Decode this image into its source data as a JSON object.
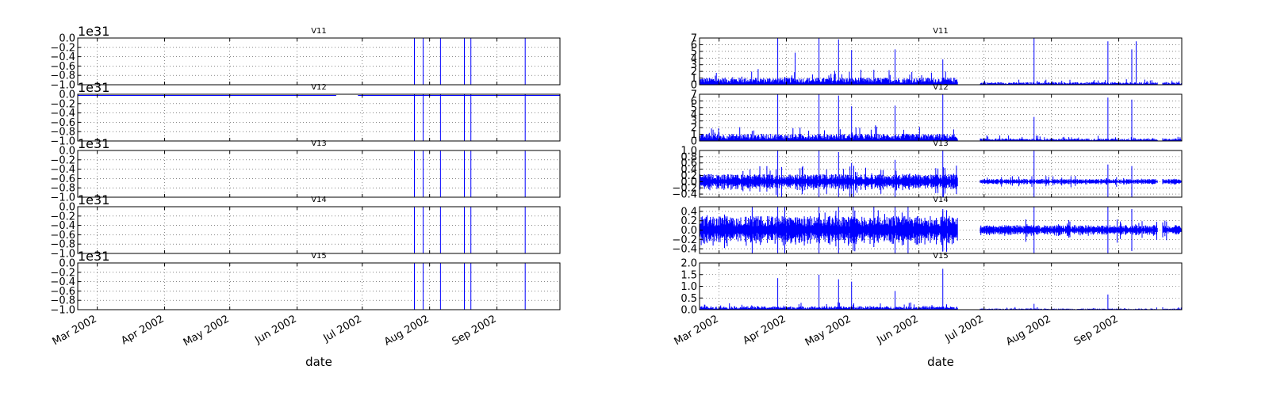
{
  "chart_data": [
    {
      "type": "line",
      "name": "left-figure",
      "xlabel": "date",
      "x_ticks": [
        "Mar 2002",
        "Apr 2002",
        "May 2002",
        "Jun 2002",
        "Jul 2002",
        "Aug 2002",
        "Sep 2002"
      ],
      "xlim": [
        "2002-02-20",
        "2002-09-30"
      ],
      "panels": [
        {
          "title": "V11",
          "offset_text": "1e31",
          "ylim": [
            -1.0,
            0.0
          ],
          "y_ticks": [
            "0.0",
            "−0.2",
            "−0.4",
            "−0.6",
            "−0.8",
            "−1.0"
          ],
          "baseline_segments": [],
          "spikes": [
            {
              "date": "2002-07-25",
              "value": -1.0
            },
            {
              "date": "2002-07-29",
              "value": -1.0
            },
            {
              "date": "2002-08-06",
              "value": -1.0
            },
            {
              "date": "2002-08-17",
              "value": -1.0
            },
            {
              "date": "2002-08-20",
              "value": -1.0
            },
            {
              "date": "2002-09-14",
              "value": -1.0
            }
          ]
        },
        {
          "title": "V12",
          "offset_text": "1e31",
          "ylim": [
            -1.0,
            0.0
          ],
          "y_ticks": [
            "0.0",
            "−0.2",
            "−0.4",
            "−0.6",
            "−0.8",
            "−1.0"
          ],
          "baseline_segments": [
            [
              "2002-02-20",
              "2002-06-19"
            ],
            [
              "2002-06-29",
              "2002-09-30"
            ]
          ],
          "spikes": [
            {
              "date": "2002-07-25",
              "value": -1.0
            },
            {
              "date": "2002-07-29",
              "value": -1.0
            },
            {
              "date": "2002-08-06",
              "value": -1.0
            },
            {
              "date": "2002-08-17",
              "value": -1.0
            },
            {
              "date": "2002-08-20",
              "value": -1.0
            },
            {
              "date": "2002-09-14",
              "value": -1.0
            }
          ]
        },
        {
          "title": "V13",
          "offset_text": "1e31",
          "ylim": [
            -1.0,
            0.0
          ],
          "y_ticks": [
            "0.0",
            "−0.2",
            "−0.4",
            "−0.6",
            "−0.8",
            "−1.0"
          ],
          "baseline_segments": [],
          "spikes": [
            {
              "date": "2002-07-25",
              "value": -1.0
            },
            {
              "date": "2002-07-29",
              "value": -1.0
            },
            {
              "date": "2002-08-06",
              "value": -1.0
            },
            {
              "date": "2002-08-17",
              "value": -1.0
            },
            {
              "date": "2002-08-20",
              "value": -1.0
            },
            {
              "date": "2002-09-14",
              "value": -1.0
            }
          ]
        },
        {
          "title": "V14",
          "offset_text": "1e31",
          "ylim": [
            -1.0,
            0.0
          ],
          "y_ticks": [
            "0.0",
            "−0.2",
            "−0.4",
            "−0.6",
            "−0.8",
            "−1.0"
          ],
          "baseline_segments": [],
          "spikes": [
            {
              "date": "2002-07-25",
              "value": -1.0
            },
            {
              "date": "2002-07-29",
              "value": -1.0
            },
            {
              "date": "2002-08-06",
              "value": -1.0
            },
            {
              "date": "2002-08-17",
              "value": -1.0
            },
            {
              "date": "2002-08-20",
              "value": -1.0
            },
            {
              "date": "2002-09-14",
              "value": -1.0
            }
          ]
        },
        {
          "title": "V15",
          "offset_text": "1e31",
          "ylim": [
            -1.0,
            0.0
          ],
          "y_ticks": [
            "0.0",
            "−0.2",
            "−0.4",
            "−0.6",
            "−0.8",
            "−1.0"
          ],
          "baseline_segments": [],
          "spikes": [
            {
              "date": "2002-07-25",
              "value": -1.0
            },
            {
              "date": "2002-07-29",
              "value": -1.0
            },
            {
              "date": "2002-08-06",
              "value": -1.0
            },
            {
              "date": "2002-08-17",
              "value": -1.0
            },
            {
              "date": "2002-08-20",
              "value": -1.0
            },
            {
              "date": "2002-09-14",
              "value": -1.0
            }
          ]
        }
      ]
    },
    {
      "type": "line",
      "name": "right-figure",
      "xlabel": "date",
      "x_ticks": [
        "Mar 2002",
        "Apr 2002",
        "May 2002",
        "Jun 2002",
        "Jul 2002",
        "Aug 2002",
        "Sep 2002"
      ],
      "xlim": [
        "2002-02-20",
        "2002-09-30"
      ],
      "panels": [
        {
          "title": "V11",
          "ylim": [
            0,
            7
          ],
          "y_ticks": [
            "7",
            "6",
            "5",
            "4",
            "3",
            "2",
            "1",
            "0"
          ],
          "kind": "positive",
          "typical": 0.9,
          "gaps": [
            [
              "2002-06-19",
              "2002-06-29"
            ],
            [
              "2002-09-19",
              "2002-09-21"
            ]
          ],
          "peaks": [
            {
              "date": "2002-03-28",
              "value": 7.0
            },
            {
              "date": "2002-04-05",
              "value": 4.8
            },
            {
              "date": "2002-04-16",
              "value": 7.0
            },
            {
              "date": "2002-04-25",
              "value": 6.8
            },
            {
              "date": "2002-05-01",
              "value": 5.2
            },
            {
              "date": "2002-05-21",
              "value": 5.3
            },
            {
              "date": "2002-06-12",
              "value": 3.8
            },
            {
              "date": "2002-07-24",
              "value": 7.0
            },
            {
              "date": "2002-08-27",
              "value": 6.5
            },
            {
              "date": "2002-09-07",
              "value": 5.3
            },
            {
              "date": "2002-09-09",
              "value": 6.5
            }
          ]
        },
        {
          "title": "V12",
          "ylim": [
            0,
            7
          ],
          "y_ticks": [
            "7",
            "6",
            "5",
            "4",
            "3",
            "2",
            "1",
            "0"
          ],
          "kind": "positive",
          "typical": 0.9,
          "gaps": [
            [
              "2002-06-19",
              "2002-06-29"
            ],
            [
              "2002-09-19",
              "2002-09-21"
            ]
          ],
          "peaks": [
            {
              "date": "2002-03-28",
              "value": 7.0
            },
            {
              "date": "2002-04-16",
              "value": 7.0
            },
            {
              "date": "2002-04-25",
              "value": 6.8
            },
            {
              "date": "2002-05-01",
              "value": 5.2
            },
            {
              "date": "2002-05-21",
              "value": 5.3
            },
            {
              "date": "2002-06-12",
              "value": 7.0
            },
            {
              "date": "2002-07-24",
              "value": 3.6
            },
            {
              "date": "2002-08-27",
              "value": 6.5
            },
            {
              "date": "2002-09-07",
              "value": 6.2
            }
          ]
        },
        {
          "title": "V13",
          "ylim": [
            -0.5,
            1.0
          ],
          "y_ticks": [
            "1.0",
            "0.8",
            "0.6",
            "0.4",
            "0.2",
            "0.0",
            "−0.2",
            "−0.4"
          ],
          "kind": "symmetric",
          "typical": 0.2,
          "gaps": [
            [
              "2002-06-19",
              "2002-06-29"
            ],
            [
              "2002-09-19",
              "2002-09-21"
            ]
          ],
          "peaks": [
            {
              "date": "2002-03-28",
              "value": 1.0
            },
            {
              "date": "2002-04-16",
              "value": 1.0
            },
            {
              "date": "2002-04-25",
              "value": 0.95
            },
            {
              "date": "2002-05-01",
              "value": 0.6
            },
            {
              "date": "2002-05-21",
              "value": 0.7
            },
            {
              "date": "2002-06-12",
              "value": 1.0
            },
            {
              "date": "2002-07-24",
              "value": 1.0
            },
            {
              "date": "2002-08-27",
              "value": 0.55
            },
            {
              "date": "2002-09-07",
              "value": 0.5
            }
          ]
        },
        {
          "title": "V14",
          "ylim": [
            -0.5,
            0.5
          ],
          "y_ticks": [
            "0.4",
            "0.2",
            "0.0",
            "−0.2",
            "−0.4"
          ],
          "kind": "symmetric",
          "typical": 0.25,
          "gaps": [
            [
              "2002-06-19",
              "2002-06-29"
            ],
            [
              "2002-09-19",
              "2002-09-21"
            ]
          ],
          "peaks": [
            {
              "date": "2002-03-28",
              "value": 0.5
            },
            {
              "date": "2002-04-16",
              "value": 0.5
            },
            {
              "date": "2002-04-25",
              "value": 0.5
            },
            {
              "date": "2002-05-21",
              "value": 0.5
            },
            {
              "date": "2002-06-12",
              "value": 0.45
            },
            {
              "date": "2002-07-24",
              "value": 0.5
            },
            {
              "date": "2002-08-27",
              "value": 0.5
            },
            {
              "date": "2002-09-07",
              "value": 0.45
            }
          ]
        },
        {
          "title": "V15",
          "ylim": [
            0,
            2.0
          ],
          "y_ticks": [
            "2.0",
            "1.5",
            "1.0",
            "0.5",
            "0.0"
          ],
          "kind": "positive",
          "typical": 0.12,
          "gaps": [
            [
              "2002-06-19",
              "2002-06-29"
            ],
            [
              "2002-09-19",
              "2002-09-21"
            ]
          ],
          "peaks": [
            {
              "date": "2002-03-28",
              "value": 1.35
            },
            {
              "date": "2002-04-16",
              "value": 1.5
            },
            {
              "date": "2002-04-25",
              "value": 1.3
            },
            {
              "date": "2002-05-01",
              "value": 1.2
            },
            {
              "date": "2002-05-21",
              "value": 0.8
            },
            {
              "date": "2002-06-12",
              "value": 1.75
            },
            {
              "date": "2002-07-24",
              "value": 0.25
            },
            {
              "date": "2002-08-27",
              "value": 0.65
            }
          ]
        }
      ]
    }
  ]
}
